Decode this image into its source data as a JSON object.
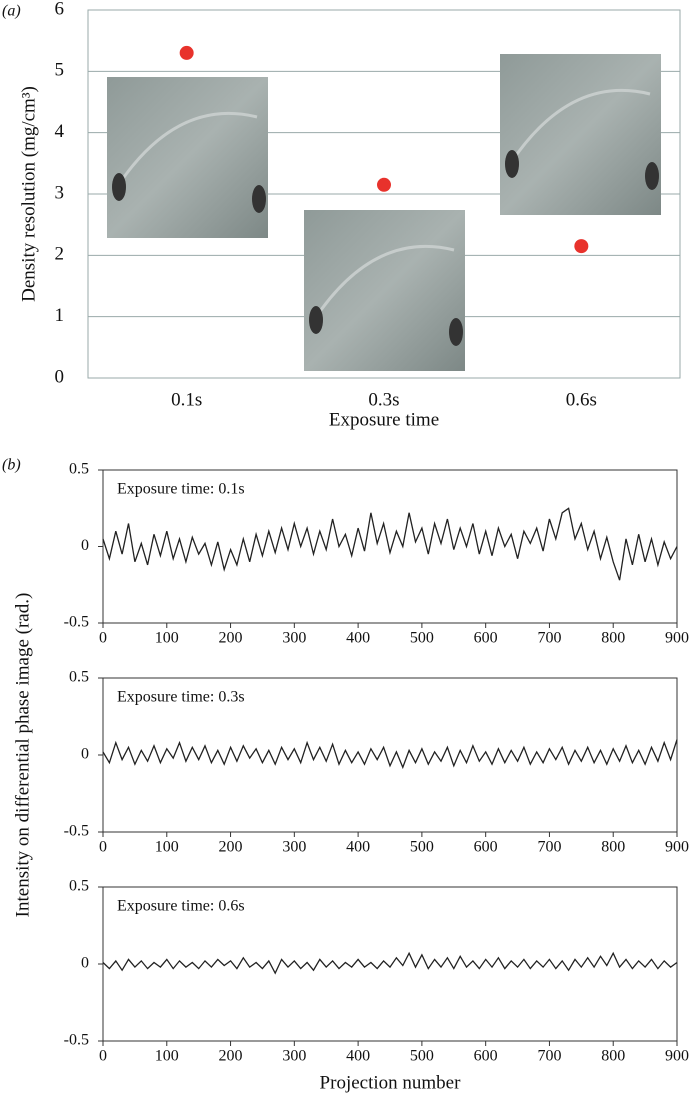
{
  "chart_data": [
    {
      "type": "scatter",
      "panel_label": "(a)",
      "ylabel": "Density resolution (mg/cm³)",
      "xlabel": "Exposure time",
      "categories": [
        "0.1s",
        "0.3s",
        "0.6s"
      ],
      "values": [
        5.3,
        3.15,
        2.15
      ],
      "color": "#e8322c",
      "ylim": [
        0,
        6
      ],
      "yticks": [
        0,
        1,
        2,
        3,
        4,
        5,
        6
      ],
      "grid": true
    },
    {
      "type": "line",
      "panel_label": "(b)",
      "ylabel": "Intensity on differential phase image (rad.)",
      "annotation": "Exposure time:  0.1s",
      "color": "#222222",
      "xlim": [
        0,
        900
      ],
      "xticks": [
        0,
        100,
        200,
        300,
        400,
        500,
        600,
        700,
        800,
        900
      ],
      "ylim": [
        -0.5,
        0.5
      ],
      "yticks": [
        0.5,
        0,
        -0.5
      ],
      "x": [
        0,
        10,
        20,
        30,
        40,
        50,
        60,
        70,
        80,
        90,
        100,
        110,
        120,
        130,
        140,
        150,
        160,
        170,
        180,
        190,
        200,
        210,
        220,
        230,
        240,
        250,
        260,
        270,
        280,
        290,
        300,
        310,
        320,
        330,
        340,
        350,
        360,
        370,
        380,
        390,
        400,
        410,
        420,
        430,
        440,
        450,
        460,
        470,
        480,
        490,
        500,
        510,
        520,
        530,
        540,
        550,
        560,
        570,
        580,
        590,
        600,
        610,
        620,
        630,
        640,
        650,
        660,
        670,
        680,
        690,
        700,
        710,
        720,
        730,
        740,
        750,
        760,
        770,
        780,
        790,
        800,
        810,
        820,
        830,
        840,
        850,
        860,
        870,
        880,
        890,
        900
      ],
      "values": [
        0.05,
        -0.08,
        0.1,
        -0.05,
        0.15,
        -0.1,
        0.02,
        -0.12,
        0.08,
        -0.06,
        0.1,
        -0.08,
        0.05,
        -0.1,
        0.06,
        -0.05,
        0.02,
        -0.12,
        0.03,
        -0.15,
        -0.02,
        -0.12,
        0.05,
        -0.1,
        0.08,
        -0.06,
        0.1,
        -0.04,
        0.12,
        -0.02,
        0.15,
        0.0,
        0.12,
        -0.05,
        0.1,
        -0.02,
        0.18,
        0.0,
        0.08,
        -0.06,
        0.12,
        -0.03,
        0.22,
        0.02,
        0.15,
        -0.04,
        0.1,
        0.0,
        0.22,
        0.03,
        0.12,
        -0.05,
        0.15,
        0.02,
        0.18,
        -0.02,
        0.12,
        0.0,
        0.15,
        -0.05,
        0.1,
        -0.06,
        0.12,
        0.0,
        0.08,
        -0.08,
        0.1,
        0.02,
        0.12,
        -0.03,
        0.18,
        0.05,
        0.22,
        0.25,
        0.05,
        0.15,
        -0.02,
        0.1,
        -0.08,
        0.06,
        -0.1,
        -0.22,
        0.05,
        -0.12,
        0.08,
        -0.1,
        0.05,
        -0.12,
        0.03,
        -0.08,
        0.0
      ]
    },
    {
      "type": "line",
      "annotation": "Exposure time:  0.3s",
      "color": "#222222",
      "xlim": [
        0,
        900
      ],
      "xticks": [
        0,
        100,
        200,
        300,
        400,
        500,
        600,
        700,
        800,
        900
      ],
      "ylim": [
        -0.5,
        0.5
      ],
      "yticks": [
        0.5,
        0,
        -0.5
      ],
      "x": [
        0,
        10,
        20,
        30,
        40,
        50,
        60,
        70,
        80,
        90,
        100,
        110,
        120,
        130,
        140,
        150,
        160,
        170,
        180,
        190,
        200,
        210,
        220,
        230,
        240,
        250,
        260,
        270,
        280,
        290,
        300,
        310,
        320,
        330,
        340,
        350,
        360,
        370,
        380,
        390,
        400,
        410,
        420,
        430,
        440,
        450,
        460,
        470,
        480,
        490,
        500,
        510,
        520,
        530,
        540,
        550,
        560,
        570,
        580,
        590,
        600,
        610,
        620,
        630,
        640,
        650,
        660,
        670,
        680,
        690,
        700,
        710,
        720,
        730,
        740,
        750,
        760,
        770,
        780,
        790,
        800,
        810,
        820,
        830,
        840,
        850,
        860,
        870,
        880,
        890,
        900
      ],
      "values": [
        0.02,
        -0.05,
        0.08,
        -0.03,
        0.05,
        -0.06,
        0.03,
        -0.04,
        0.06,
        -0.05,
        0.04,
        -0.02,
        0.08,
        -0.04,
        0.05,
        -0.03,
        0.06,
        -0.05,
        0.03,
        -0.06,
        0.05,
        -0.04,
        0.06,
        -0.02,
        0.04,
        -0.05,
        0.03,
        -0.06,
        0.05,
        -0.03,
        0.04,
        -0.05,
        0.08,
        -0.03,
        0.05,
        -0.04,
        0.07,
        -0.06,
        0.03,
        -0.05,
        0.02,
        -0.06,
        0.04,
        -0.03,
        0.05,
        -0.07,
        0.02,
        -0.08,
        0.03,
        -0.05,
        0.04,
        -0.06,
        0.02,
        -0.04,
        0.05,
        -0.07,
        0.03,
        -0.05,
        0.06,
        -0.04,
        0.02,
        -0.06,
        0.04,
        -0.05,
        0.03,
        -0.04,
        0.05,
        -0.06,
        0.02,
        -0.05,
        0.04,
        -0.03,
        0.05,
        -0.06,
        0.03,
        -0.04,
        0.05,
        -0.05,
        0.03,
        -0.06,
        0.04,
        -0.04,
        0.06,
        -0.05,
        0.03,
        -0.06,
        0.05,
        -0.04,
        0.08,
        -0.03,
        0.1
      ]
    },
    {
      "type": "line",
      "annotation": "Exposure time:  0.6s",
      "xlabel": "Projection number",
      "color": "#222222",
      "xlim": [
        0,
        900
      ],
      "xticks": [
        0,
        100,
        200,
        300,
        400,
        500,
        600,
        700,
        800,
        900
      ],
      "ylim": [
        -0.5,
        0.5
      ],
      "yticks": [
        0.5,
        0,
        -0.5
      ],
      "x": [
        0,
        10,
        20,
        30,
        40,
        50,
        60,
        70,
        80,
        90,
        100,
        110,
        120,
        130,
        140,
        150,
        160,
        170,
        180,
        190,
        200,
        210,
        220,
        230,
        240,
        250,
        260,
        270,
        280,
        290,
        300,
        310,
        320,
        330,
        340,
        350,
        360,
        370,
        380,
        390,
        400,
        410,
        420,
        430,
        440,
        450,
        460,
        470,
        480,
        490,
        500,
        510,
        520,
        530,
        540,
        550,
        560,
        570,
        580,
        590,
        600,
        610,
        620,
        630,
        640,
        650,
        660,
        670,
        680,
        690,
        700,
        710,
        720,
        730,
        740,
        750,
        760,
        770,
        780,
        790,
        800,
        810,
        820,
        830,
        840,
        850,
        860,
        870,
        880,
        890,
        900
      ],
      "values": [
        0.01,
        -0.03,
        0.02,
        -0.04,
        0.03,
        -0.02,
        0.02,
        -0.03,
        0.01,
        -0.02,
        0.03,
        -0.03,
        0.02,
        -0.02,
        0.01,
        -0.03,
        0.02,
        -0.02,
        0.03,
        -0.01,
        0.02,
        -0.03,
        0.04,
        -0.02,
        0.01,
        -0.03,
        0.02,
        -0.06,
        0.03,
        -0.02,
        0.02,
        -0.03,
        0.01,
        -0.04,
        0.03,
        -0.02,
        0.02,
        -0.03,
        0.01,
        -0.02,
        0.03,
        -0.02,
        0.01,
        -0.03,
        0.02,
        -0.02,
        0.04,
        -0.01,
        0.07,
        -0.02,
        0.06,
        -0.03,
        0.03,
        -0.02,
        0.04,
        -0.03,
        0.05,
        -0.02,
        0.02,
        -0.03,
        0.03,
        -0.02,
        0.04,
        -0.03,
        0.02,
        -0.02,
        0.03,
        -0.03,
        0.02,
        -0.02,
        0.03,
        -0.03,
        0.02,
        -0.04,
        0.03,
        -0.02,
        0.04,
        -0.02,
        0.05,
        -0.01,
        0.07,
        -0.02,
        0.03,
        -0.03,
        0.02,
        -0.02,
        0.03,
        -0.03,
        0.02,
        -0.02,
        0.01
      ]
    }
  ]
}
